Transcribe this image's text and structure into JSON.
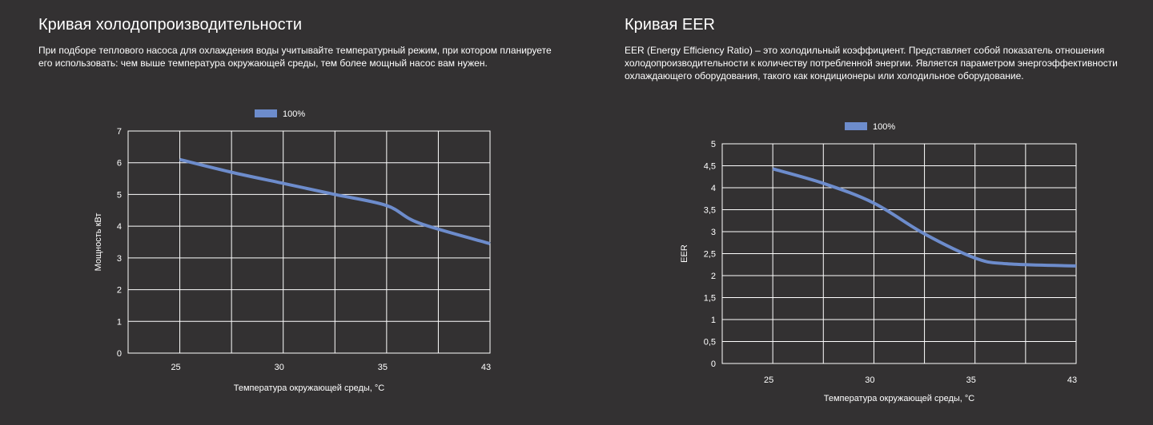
{
  "accent": "#6d8ccc",
  "chart_data": [
    {
      "type": "line",
      "title": "Кривая холодопроизводительности",
      "description": "При подборе теплового насоса для охлаждения воды учитывайте температурный режим, при котором планируете его использовать: чем выше температура окружающей среды, тем более мощный насос вам нужен.",
      "legend": "100%",
      "legend_position": "top-center",
      "xlabel": "Температура окружающей среды, °C",
      "ylabel": "Мощность кВт",
      "categories": [
        "25",
        "30",
        "35",
        "43"
      ],
      "yticks": [
        "0",
        "1",
        "2",
        "3",
        "4",
        "5",
        "6",
        "7"
      ],
      "ylim": [
        0,
        7
      ],
      "grid": true,
      "series": [
        {
          "name": "100%",
          "x": [
            25,
            27.5,
            30,
            32.5,
            35,
            37.5,
            43
          ],
          "values": [
            6.1,
            5.7,
            5.35,
            5.0,
            4.65,
            4.1,
            3.45
          ]
        }
      ]
    },
    {
      "type": "line",
      "title": "Кривая EER",
      "description": "EER (Energy Efficiency Ratio) – это холодильный коэффициент. Представляет собой показатель отношения холодопроизводительности к количеству потребленной энергии. Является параметром энергоэффективности охлаждающего оборудования, такого как кондиционеры или холодильное оборудование.",
      "legend": "100%",
      "legend_position": "top-center",
      "xlabel": "Температура окружающей среды, °C",
      "ylabel": "EER",
      "categories": [
        "25",
        "30",
        "35",
        "43"
      ],
      "yticks": [
        "0",
        "0,5",
        "1",
        "1,5",
        "2",
        "2,5",
        "3",
        "3,5",
        "4",
        "4,5",
        "5"
      ],
      "ylim": [
        0,
        5
      ],
      "grid": true,
      "series": [
        {
          "name": "100%",
          "x": [
            25,
            27.5,
            30,
            32.5,
            35,
            37.5,
            43
          ],
          "values": [
            4.43,
            4.1,
            3.65,
            2.95,
            2.4,
            2.27,
            2.22
          ]
        }
      ]
    }
  ]
}
